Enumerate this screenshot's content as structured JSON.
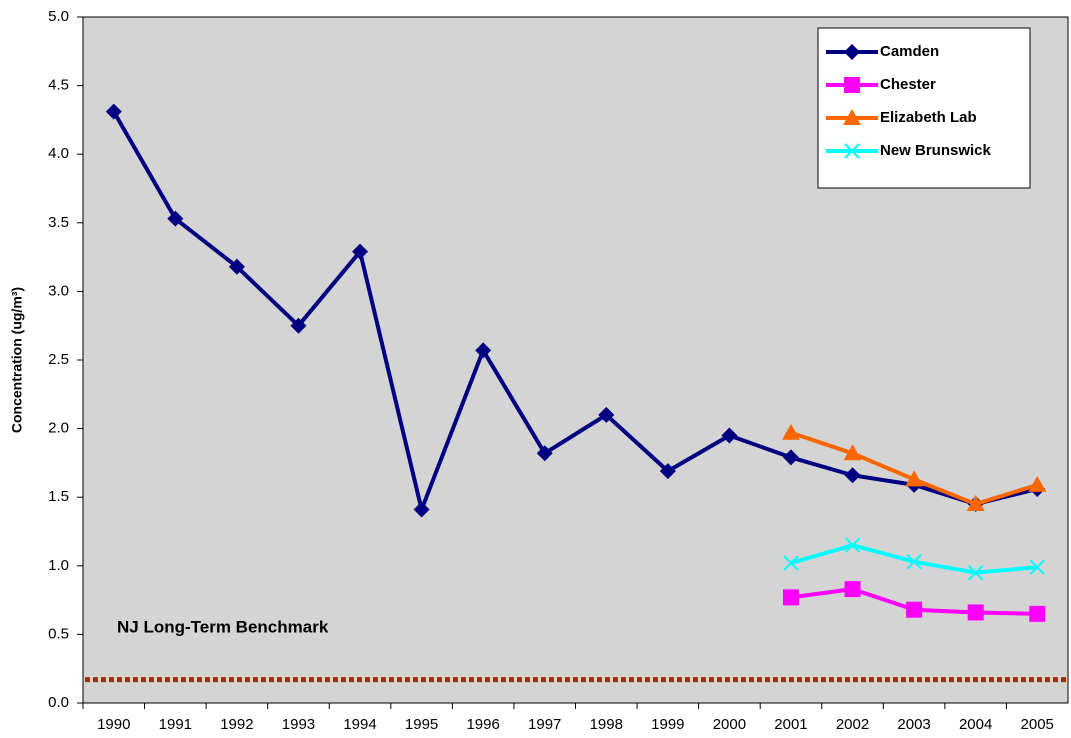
{
  "chart_data": {
    "type": "line",
    "y_label": "Concentration (ug/m³)",
    "categories": [
      "1990",
      "1991",
      "1992",
      "1993",
      "1994",
      "1995",
      "1996",
      "1997",
      "1998",
      "1999",
      "2000",
      "2001",
      "2002",
      "2003",
      "2004",
      "2005"
    ],
    "series": [
      {
        "name": "Camden",
        "color": "#000080",
        "marker": "diamond",
        "values": [
          4.31,
          3.53,
          3.18,
          2.75,
          3.29,
          1.41,
          2.57,
          1.82,
          2.1,
          1.69,
          1.95,
          1.79,
          1.66,
          1.59,
          1.45,
          1.56
        ]
      },
      {
        "name": "Chester",
        "color": "#ff00ff",
        "marker": "square",
        "values": [
          null,
          null,
          null,
          null,
          null,
          null,
          null,
          null,
          null,
          null,
          null,
          0.77,
          0.83,
          0.68,
          0.66,
          0.65
        ]
      },
      {
        "name": "Elizabeth Lab",
        "color": "#ff6600",
        "marker": "triangle",
        "values": [
          null,
          null,
          null,
          null,
          null,
          null,
          null,
          null,
          null,
          null,
          null,
          1.97,
          1.82,
          1.63,
          1.45,
          1.59
        ]
      },
      {
        "name": "New Brunswick",
        "color": "#00ffff",
        "marker": "x",
        "values": [
          null,
          null,
          null,
          null,
          null,
          null,
          null,
          null,
          null,
          null,
          null,
          1.02,
          1.15,
          1.03,
          0.95,
          0.99
        ]
      }
    ],
    "benchmark": {
      "label": "NJ Long-Term Benchmark",
      "value": 0.17,
      "color": "#993300"
    },
    "ylim": [
      0,
      5
    ],
    "yticks": [
      {
        "value": 0,
        "label": "0.0"
      },
      0.5,
      {
        "value": 1,
        "label": "1.0"
      },
      1.5,
      {
        "value": 2,
        "label": "2.0"
      },
      2.5,
      {
        "value": 3,
        "label": "3.0"
      },
      3.5,
      {
        "value": 4,
        "label": "4.0"
      },
      4.5,
      {
        "value": 5,
        "label": "5.0"
      }
    ],
    "grid": false,
    "legend": "top-right"
  }
}
